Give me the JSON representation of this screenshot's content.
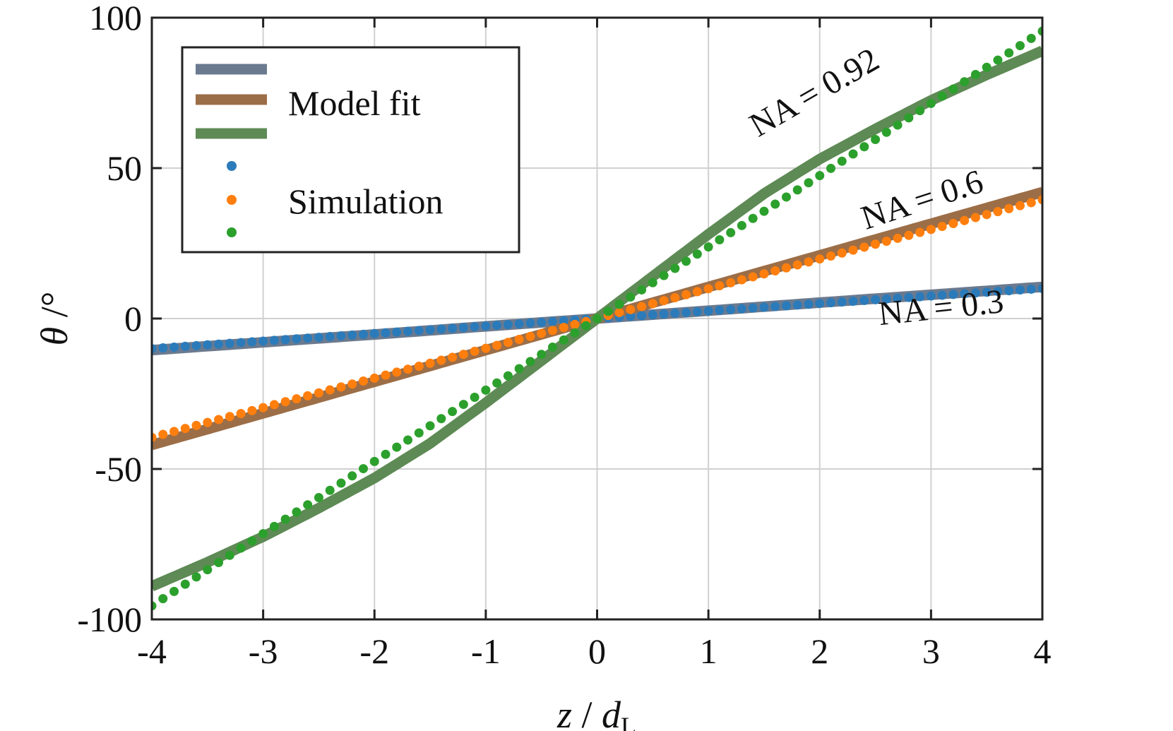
{
  "chart_data": {
    "type": "line",
    "xlabel": {
      "var": "z",
      "sep": " / ",
      "den": "d",
      "den_sub": "L"
    },
    "ylabel": {
      "var": "θ",
      "unit": " /°"
    },
    "xlim": [
      -4,
      4
    ],
    "ylim": [
      -100,
      100
    ],
    "xticks": [
      -4,
      -3,
      -2,
      -1,
      0,
      1,
      2,
      3,
      4
    ],
    "yticks": [
      -100,
      -50,
      0,
      50,
      100
    ],
    "xtick_labels": [
      "-4",
      "-3",
      "-2",
      "-1",
      "0",
      "1",
      "2",
      "3",
      "4"
    ],
    "ytick_labels": [
      "-100",
      "-50",
      "0",
      "50",
      "100"
    ],
    "grid": true,
    "legend": {
      "placement": "top-left",
      "fit_label": "Model fit",
      "sim_label": "Simulation"
    },
    "annotations": [
      {
        "text": "NA = 0.92",
        "x": 2.0,
        "y": 72,
        "rotation": -30
      },
      {
        "text": "NA = 0.6",
        "x": 2.95,
        "y": 36,
        "rotation": -18
      },
      {
        "text": "NA = 0.3",
        "x": 3.1,
        "y": 0,
        "rotation": -6
      }
    ],
    "series": [
      {
        "kind": "model",
        "color": "#6b7a8f",
        "x": [
          -4,
          -3,
          -2,
          -1,
          0,
          1,
          2,
          3,
          4
        ],
        "values": [
          -10.5,
          -7.9,
          -5.3,
          -2.6,
          0,
          2.6,
          5.3,
          7.9,
          10.5
        ]
      },
      {
        "kind": "model",
        "color": "#9c6e47",
        "x": [
          -4,
          -3,
          -2,
          -1,
          0,
          1,
          2,
          3,
          4
        ],
        "values": [
          -42,
          -31.5,
          -21,
          -10.5,
          0,
          10.5,
          21,
          31.5,
          42
        ]
      },
      {
        "kind": "model",
        "color": "#5e8a55",
        "x": [
          -4,
          -3.5,
          -3,
          -2.5,
          -2,
          -1.5,
          -1,
          -0.5,
          0,
          0.5,
          1,
          1.5,
          2,
          2.5,
          3,
          3.5,
          4
        ],
        "values": [
          -89,
          -81,
          -72.5,
          -63,
          -53,
          -41.5,
          -28,
          -14,
          0,
          14,
          28,
          41.5,
          53,
          63,
          72.5,
          81,
          89
        ]
      },
      {
        "kind": "simulation",
        "color": "#2b7bba",
        "x": [
          -4,
          -3,
          -2,
          -1,
          0,
          1,
          2,
          3,
          4
        ],
        "values": [
          -10,
          -7.5,
          -5,
          -2.5,
          0,
          2.5,
          5,
          7.5,
          10
        ]
      },
      {
        "kind": "simulation",
        "color": "#ff7f0e",
        "x": [
          -4,
          -3,
          -2,
          -1,
          0,
          1,
          2,
          3,
          4
        ],
        "values": [
          -39.5,
          -29.6,
          -19.8,
          -9.9,
          0,
          9.9,
          19.8,
          29.6,
          39.5
        ]
      },
      {
        "kind": "simulation",
        "color": "#2ca02c",
        "x": [
          -4,
          -3,
          -2,
          -1,
          0,
          1,
          2,
          3,
          4
        ],
        "values": [
          -95.5,
          -71.5,
          -47.5,
          -23.8,
          0,
          23.8,
          47.5,
          71.5,
          95.5
        ]
      }
    ]
  }
}
